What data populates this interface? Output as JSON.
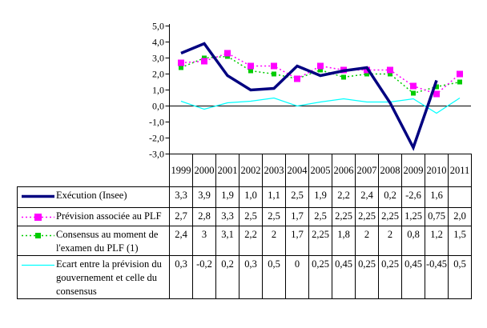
{
  "chart_data": {
    "type": "line",
    "title": "",
    "xlabel": "",
    "ylabel": "",
    "x": [
      "1999",
      "2000",
      "2001",
      "2002",
      "2003",
      "2004",
      "2005",
      "2006",
      "2007",
      "2008",
      "2009",
      "2010",
      "2011"
    ],
    "ylim": [
      -3.0,
      5.0
    ],
    "yticks": [
      5,
      4,
      3,
      2,
      1,
      0,
      -1,
      -2,
      -3
    ],
    "ytick_labels": [
      "5,0",
      "4,0",
      "3,0",
      "2,0",
      "1,0",
      "0,0",
      "-1,0",
      "-2,0",
      "-3,0"
    ],
    "grid": false,
    "zero_line": true,
    "legend_position": "table-left-column",
    "series": [
      {
        "name": "Exécution (Insee)",
        "color": "#000080",
        "line_style": "solid-thick",
        "marker": false,
        "values": [
          3.3,
          3.9,
          1.9,
          1.0,
          1.1,
          2.5,
          1.9,
          2.2,
          2.4,
          0.2,
          -2.6,
          1.6,
          null
        ]
      },
      {
        "name": "Prévision associée au PLF",
        "color": "#FF00FF",
        "line_style": "dashed",
        "marker": true,
        "values": [
          2.7,
          2.8,
          3.3,
          2.5,
          2.5,
          1.7,
          2.5,
          2.25,
          2.25,
          2.25,
          1.25,
          0.75,
          2.0
        ]
      },
      {
        "name": "Consensus au moment de l'examen du PLF (1)",
        "color": "#00CC00",
        "line_style": "dashed",
        "marker": true,
        "values": [
          2.4,
          3,
          3.1,
          2.2,
          2,
          1.7,
          2.25,
          1.8,
          2,
          2,
          0.8,
          1.2,
          1.5
        ]
      },
      {
        "name": "Ecart entre la prévision du gouvernement et celle du consensus",
        "color": "#00FFFF",
        "line_style": "solid-thin",
        "marker": false,
        "values": [
          0.3,
          -0.2,
          0.2,
          0.3,
          0.5,
          0,
          0.25,
          0.45,
          0.25,
          0.25,
          0.45,
          -0.45,
          0.5
        ]
      }
    ]
  },
  "table": {
    "year_headers": [
      "1999",
      "2000",
      "2001",
      "2002",
      "2003",
      "2004",
      "2005",
      "2006",
      "2007",
      "2008",
      "2009",
      "2010",
      "2011"
    ],
    "rows": [
      {
        "label_lines": [
          "Exécution (Insee)"
        ],
        "values": [
          "3,3",
          "3,9",
          "1,9",
          "1,0",
          "1,1",
          "2,5",
          "1,9",
          "2,2",
          "2,4",
          "0,2",
          "-2,6",
          "1,6",
          ""
        ]
      },
      {
        "label_lines": [
          "Prévision associée au PLF"
        ],
        "values": [
          "2,7",
          "2,8",
          "3,3",
          "2,5",
          "2,5",
          "1,7",
          "2,5",
          "2,25",
          "2,25",
          "2,25",
          "1,25",
          "0,75",
          "2,0"
        ]
      },
      {
        "label_lines": [
          "Consensus au moment de",
          "l'examen du PLF (1)"
        ],
        "values": [
          "2,4",
          "3",
          "3,1",
          "2,2",
          "2",
          "1,7",
          "2,25",
          "1,8",
          "2",
          "2",
          "0,8",
          "1,2",
          "1,5"
        ]
      },
      {
        "label_lines": [
          "Ecart entre la prévision du",
          "gouvernement et celle du",
          "consensus"
        ],
        "values": [
          "0,3",
          "-0,2",
          "0,2",
          "0,3",
          "0,5",
          "0",
          "0,25",
          "0,45",
          "0,25",
          "0,25",
          "0,45",
          "-0,45",
          "0,5"
        ]
      }
    ]
  },
  "colors": {
    "axis": "#000000",
    "table_border": "#000000",
    "background": "#FFFFFF"
  }
}
